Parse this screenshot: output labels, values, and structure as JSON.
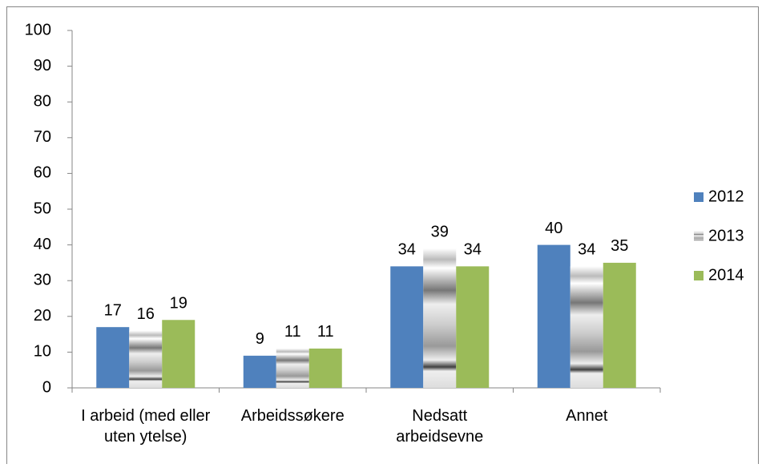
{
  "chart_data": {
    "type": "bar",
    "categories": [
      "I arbeid (med eller uten ytelse)",
      "Arbeidssøkere",
      "Nedsatt arbeidsevne",
      "Annet"
    ],
    "series": [
      {
        "name": "2012",
        "color": "#4f81bd",
        "values": [
          17,
          9,
          34,
          40
        ]
      },
      {
        "name": "2013",
        "color": "#404040",
        "values": [
          16,
          11,
          39,
          34
        ]
      },
      {
        "name": "2014",
        "color": "#9bbb59",
        "values": [
          19,
          11,
          34,
          35
        ]
      }
    ],
    "ylim": [
      0,
      100
    ],
    "yticks": [
      0,
      10,
      20,
      30,
      40,
      50,
      60,
      70,
      80,
      90,
      100
    ],
    "grid": false,
    "legend": "right"
  }
}
